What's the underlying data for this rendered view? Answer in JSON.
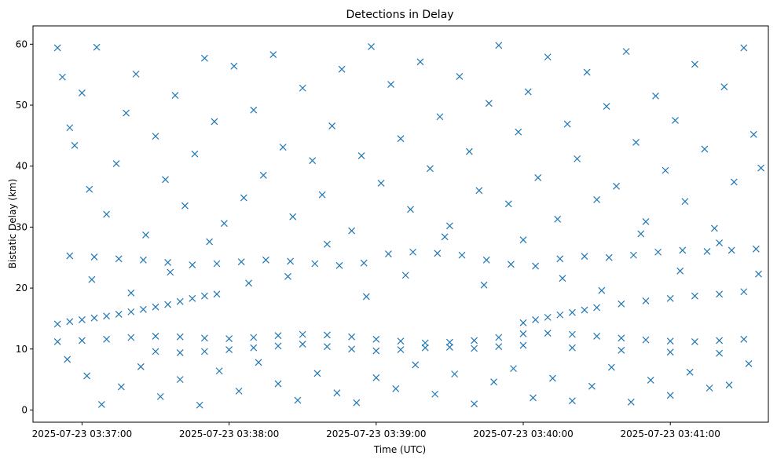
{
  "chart_data": {
    "type": "scatter",
    "title": "Detections in Delay",
    "xlabel": "Time (UTC)",
    "ylabel": "Bistatic Delay (km)",
    "x_axis_type": "time",
    "xlim": [
      "2025-07-23 03:36:40",
      "2025-07-23 03:41:40"
    ],
    "ylim": [
      -2,
      63
    ],
    "x_ticks": [
      "2025-07-23 03:37:00",
      "2025-07-23 03:38:00",
      "2025-07-23 03:39:00",
      "2025-07-23 03:40:00",
      "2025-07-23 03:41:00"
    ],
    "y_ticks": [
      0,
      10,
      20,
      30,
      40,
      50,
      60
    ],
    "grid": false,
    "marker": "x",
    "color": "#1f77b4",
    "series": [
      {
        "points": [
          [
            "2025-07-23 03:36:50",
            14.1
          ],
          [
            "2025-07-23 03:36:55",
            14.5
          ],
          [
            "2025-07-23 03:37:00",
            14.8
          ],
          [
            "2025-07-23 03:37:05",
            15.1
          ],
          [
            "2025-07-23 03:37:10",
            15.4
          ],
          [
            "2025-07-23 03:37:15",
            15.7
          ],
          [
            "2025-07-23 03:37:20",
            16.1
          ],
          [
            "2025-07-23 03:37:25",
            16.5
          ],
          [
            "2025-07-23 03:37:30",
            16.9
          ],
          [
            "2025-07-23 03:37:35",
            17.3
          ],
          [
            "2025-07-23 03:37:40",
            17.8
          ],
          [
            "2025-07-23 03:37:45",
            18.3
          ],
          [
            "2025-07-23 03:37:50",
            18.7
          ],
          [
            "2025-07-23 03:37:55",
            19.0
          ],
          [
            "2025-07-23 03:40:00",
            14.3
          ],
          [
            "2025-07-23 03:40:05",
            14.8
          ],
          [
            "2025-07-23 03:40:10",
            15.2
          ],
          [
            "2025-07-23 03:40:15",
            15.6
          ],
          [
            "2025-07-23 03:40:20",
            16.0
          ],
          [
            "2025-07-23 03:40:25",
            16.4
          ],
          [
            "2025-07-23 03:40:30",
            16.8
          ],
          [
            "2025-07-23 03:40:40",
            17.4
          ],
          [
            "2025-07-23 03:40:50",
            17.9
          ],
          [
            "2025-07-23 03:41:00",
            18.3
          ],
          [
            "2025-07-23 03:41:10",
            18.7
          ],
          [
            "2025-07-23 03:41:20",
            19.0
          ],
          [
            "2025-07-23 03:41:30",
            19.4
          ],
          [
            "2025-07-23 03:36:50",
            11.2
          ],
          [
            "2025-07-23 03:37:00",
            11.4
          ],
          [
            "2025-07-23 03:37:10",
            11.6
          ],
          [
            "2025-07-23 03:37:20",
            11.9
          ],
          [
            "2025-07-23 03:37:30",
            12.1
          ],
          [
            "2025-07-23 03:37:40",
            12.0
          ],
          [
            "2025-07-23 03:37:50",
            11.8
          ],
          [
            "2025-07-23 03:38:00",
            11.7
          ],
          [
            "2025-07-23 03:38:10",
            11.9
          ],
          [
            "2025-07-23 03:38:20",
            12.2
          ],
          [
            "2025-07-23 03:38:30",
            12.4
          ],
          [
            "2025-07-23 03:38:40",
            12.3
          ],
          [
            "2025-07-23 03:38:50",
            12.0
          ],
          [
            "2025-07-23 03:39:00",
            11.6
          ],
          [
            "2025-07-23 03:39:10",
            11.3
          ],
          [
            "2025-07-23 03:39:20",
            11.0
          ],
          [
            "2025-07-23 03:39:30",
            11.1
          ],
          [
            "2025-07-23 03:39:40",
            11.4
          ],
          [
            "2025-07-23 03:39:50",
            11.9
          ],
          [
            "2025-07-23 03:40:00",
            12.5
          ],
          [
            "2025-07-23 03:40:10",
            12.6
          ],
          [
            "2025-07-23 03:40:20",
            12.4
          ],
          [
            "2025-07-23 03:40:30",
            12.1
          ],
          [
            "2025-07-23 03:40:40",
            11.8
          ],
          [
            "2025-07-23 03:40:50",
            11.5
          ],
          [
            "2025-07-23 03:41:00",
            11.3
          ],
          [
            "2025-07-23 03:41:10",
            11.2
          ],
          [
            "2025-07-23 03:41:20",
            11.4
          ],
          [
            "2025-07-23 03:41:30",
            11.6
          ],
          [
            "2025-07-23 03:37:30",
            9.6
          ],
          [
            "2025-07-23 03:37:40",
            9.4
          ],
          [
            "2025-07-23 03:37:50",
            9.6
          ],
          [
            "2025-07-23 03:38:00",
            9.9
          ],
          [
            "2025-07-23 03:38:10",
            10.2
          ],
          [
            "2025-07-23 03:38:20",
            10.5
          ],
          [
            "2025-07-23 03:38:30",
            10.8
          ],
          [
            "2025-07-23 03:38:40",
            10.4
          ],
          [
            "2025-07-23 03:38:50",
            10.0
          ],
          [
            "2025-07-23 03:39:00",
            9.7
          ],
          [
            "2025-07-23 03:39:10",
            9.9
          ],
          [
            "2025-07-23 03:39:20",
            10.2
          ],
          [
            "2025-07-23 03:39:30",
            10.3
          ],
          [
            "2025-07-23 03:39:40",
            10.1
          ],
          [
            "2025-07-23 03:39:50",
            10.4
          ],
          [
            "2025-07-23 03:40:00",
            10.6
          ],
          [
            "2025-07-23 03:40:20",
            10.2
          ],
          [
            "2025-07-23 03:40:40",
            9.8
          ],
          [
            "2025-07-23 03:41:00",
            9.5
          ],
          [
            "2025-07-23 03:41:20",
            9.3
          ],
          [
            "2025-07-23 03:36:55",
            25.3
          ],
          [
            "2025-07-23 03:37:05",
            25.1
          ],
          [
            "2025-07-23 03:37:15",
            24.8
          ],
          [
            "2025-07-23 03:37:25",
            24.6
          ],
          [
            "2025-07-23 03:37:35",
            24.2
          ],
          [
            "2025-07-23 03:37:45",
            23.8
          ],
          [
            "2025-07-23 03:37:55",
            24.0
          ],
          [
            "2025-07-23 03:38:05",
            24.3
          ],
          [
            "2025-07-23 03:38:15",
            24.6
          ],
          [
            "2025-07-23 03:38:25",
            24.4
          ],
          [
            "2025-07-23 03:38:35",
            24.0
          ],
          [
            "2025-07-23 03:38:45",
            23.7
          ],
          [
            "2025-07-23 03:38:55",
            24.1
          ],
          [
            "2025-07-23 03:39:05",
            25.6
          ],
          [
            "2025-07-23 03:39:15",
            25.9
          ],
          [
            "2025-07-23 03:39:25",
            25.7
          ],
          [
            "2025-07-23 03:39:35",
            25.4
          ],
          [
            "2025-07-23 03:39:45",
            24.6
          ],
          [
            "2025-07-23 03:39:55",
            23.9
          ],
          [
            "2025-07-23 03:40:05",
            23.6
          ],
          [
            "2025-07-23 03:40:15",
            24.8
          ],
          [
            "2025-07-23 03:40:25",
            25.2
          ],
          [
            "2025-07-23 03:40:35",
            25.0
          ],
          [
            "2025-07-23 03:40:45",
            25.4
          ],
          [
            "2025-07-23 03:40:55",
            25.9
          ],
          [
            "2025-07-23 03:41:05",
            26.2
          ],
          [
            "2025-07-23 03:41:15",
            26.0
          ],
          [
            "2025-07-23 03:41:25",
            26.2
          ],
          [
            "2025-07-23 03:41:35",
            26.4
          ],
          [
            "2025-07-23 03:36:50",
            59.4
          ],
          [
            "2025-07-23 03:36:52",
            54.6
          ],
          [
            "2025-07-23 03:36:55",
            46.3
          ],
          [
            "2025-07-23 03:36:57",
            43.4
          ],
          [
            "2025-07-23 03:37:00",
            52.0
          ],
          [
            "2025-07-23 03:37:03",
            36.2
          ],
          [
            "2025-07-23 03:37:06",
            59.5
          ],
          [
            "2025-07-23 03:37:10",
            32.1
          ],
          [
            "2025-07-23 03:37:14",
            40.4
          ],
          [
            "2025-07-23 03:37:18",
            48.7
          ],
          [
            "2025-07-23 03:37:22",
            55.1
          ],
          [
            "2025-07-23 03:37:26",
            28.7
          ],
          [
            "2025-07-23 03:37:30",
            44.9
          ],
          [
            "2025-07-23 03:37:34",
            37.8
          ],
          [
            "2025-07-23 03:37:38",
            51.6
          ],
          [
            "2025-07-23 03:37:42",
            33.5
          ],
          [
            "2025-07-23 03:37:46",
            42.0
          ],
          [
            "2025-07-23 03:37:50",
            57.7
          ],
          [
            "2025-07-23 03:37:54",
            47.3
          ],
          [
            "2025-07-23 03:37:58",
            30.6
          ],
          [
            "2025-07-23 03:38:02",
            56.4
          ],
          [
            "2025-07-23 03:38:06",
            34.8
          ],
          [
            "2025-07-23 03:38:10",
            49.2
          ],
          [
            "2025-07-23 03:38:14",
            38.5
          ],
          [
            "2025-07-23 03:38:18",
            58.3
          ],
          [
            "2025-07-23 03:38:22",
            43.1
          ],
          [
            "2025-07-23 03:38:26",
            31.7
          ],
          [
            "2025-07-23 03:38:30",
            52.8
          ],
          [
            "2025-07-23 03:38:34",
            40.9
          ],
          [
            "2025-07-23 03:38:38",
            35.3
          ],
          [
            "2025-07-23 03:38:42",
            46.6
          ],
          [
            "2025-07-23 03:38:46",
            55.9
          ],
          [
            "2025-07-23 03:38:50",
            29.4
          ],
          [
            "2025-07-23 03:38:54",
            41.7
          ],
          [
            "2025-07-23 03:38:58",
            59.6
          ],
          [
            "2025-07-23 03:39:02",
            37.2
          ],
          [
            "2025-07-23 03:39:06",
            53.4
          ],
          [
            "2025-07-23 03:39:10",
            44.5
          ],
          [
            "2025-07-23 03:39:14",
            32.9
          ],
          [
            "2025-07-23 03:39:18",
            57.1
          ],
          [
            "2025-07-23 03:39:22",
            39.6
          ],
          [
            "2025-07-23 03:39:26",
            48.1
          ],
          [
            "2025-07-23 03:39:30",
            30.2
          ],
          [
            "2025-07-23 03:39:34",
            54.7
          ],
          [
            "2025-07-23 03:39:38",
            42.4
          ],
          [
            "2025-07-23 03:39:42",
            36.0
          ],
          [
            "2025-07-23 03:39:46",
            50.3
          ],
          [
            "2025-07-23 03:39:50",
            59.8
          ],
          [
            "2025-07-23 03:39:54",
            33.8
          ],
          [
            "2025-07-23 03:39:58",
            45.6
          ],
          [
            "2025-07-23 03:40:02",
            52.2
          ],
          [
            "2025-07-23 03:40:06",
            38.1
          ],
          [
            "2025-07-23 03:40:10",
            57.9
          ],
          [
            "2025-07-23 03:40:14",
            31.3
          ],
          [
            "2025-07-23 03:40:18",
            46.9
          ],
          [
            "2025-07-23 03:40:22",
            41.2
          ],
          [
            "2025-07-23 03:40:26",
            55.4
          ],
          [
            "2025-07-23 03:40:30",
            34.5
          ],
          [
            "2025-07-23 03:40:34",
            49.8
          ],
          [
            "2025-07-23 03:40:38",
            36.7
          ],
          [
            "2025-07-23 03:40:42",
            58.8
          ],
          [
            "2025-07-23 03:40:46",
            43.9
          ],
          [
            "2025-07-23 03:40:50",
            30.9
          ],
          [
            "2025-07-23 03:40:54",
            51.5
          ],
          [
            "2025-07-23 03:40:58",
            39.3
          ],
          [
            "2025-07-23 03:41:02",
            47.5
          ],
          [
            "2025-07-23 03:41:06",
            34.2
          ],
          [
            "2025-07-23 03:41:10",
            56.7
          ],
          [
            "2025-07-23 03:41:14",
            42.8
          ],
          [
            "2025-07-23 03:41:18",
            29.8
          ],
          [
            "2025-07-23 03:41:22",
            53.0
          ],
          [
            "2025-07-23 03:41:26",
            37.4
          ],
          [
            "2025-07-23 03:41:30",
            59.4
          ],
          [
            "2025-07-23 03:41:34",
            45.2
          ],
          [
            "2025-07-23 03:41:37",
            39.7
          ],
          [
            "2025-07-23 03:36:54",
            8.3
          ],
          [
            "2025-07-23 03:37:02",
            5.6
          ],
          [
            "2025-07-23 03:37:08",
            0.9
          ],
          [
            "2025-07-23 03:37:16",
            3.8
          ],
          [
            "2025-07-23 03:37:24",
            7.1
          ],
          [
            "2025-07-23 03:37:32",
            2.2
          ],
          [
            "2025-07-23 03:37:40",
            5.0
          ],
          [
            "2025-07-23 03:37:48",
            0.8
          ],
          [
            "2025-07-23 03:37:56",
            6.4
          ],
          [
            "2025-07-23 03:38:04",
            3.1
          ],
          [
            "2025-07-23 03:38:12",
            7.8
          ],
          [
            "2025-07-23 03:38:20",
            4.3
          ],
          [
            "2025-07-23 03:38:28",
            1.6
          ],
          [
            "2025-07-23 03:38:36",
            6.0
          ],
          [
            "2025-07-23 03:38:44",
            2.8
          ],
          [
            "2025-07-23 03:38:52",
            1.2
          ],
          [
            "2025-07-23 03:39:00",
            5.3
          ],
          [
            "2025-07-23 03:39:08",
            3.5
          ],
          [
            "2025-07-23 03:39:16",
            7.4
          ],
          [
            "2025-07-23 03:39:24",
            2.6
          ],
          [
            "2025-07-23 03:39:32",
            5.9
          ],
          [
            "2025-07-23 03:39:40",
            1.0
          ],
          [
            "2025-07-23 03:39:48",
            4.6
          ],
          [
            "2025-07-23 03:39:56",
            6.8
          ],
          [
            "2025-07-23 03:40:04",
            2.0
          ],
          [
            "2025-07-23 03:40:12",
            5.2
          ],
          [
            "2025-07-23 03:40:20",
            1.5
          ],
          [
            "2025-07-23 03:40:28",
            3.9
          ],
          [
            "2025-07-23 03:40:36",
            7.0
          ],
          [
            "2025-07-23 03:40:44",
            1.3
          ],
          [
            "2025-07-23 03:40:52",
            4.9
          ],
          [
            "2025-07-23 03:41:00",
            2.4
          ],
          [
            "2025-07-23 03:41:08",
            6.2
          ],
          [
            "2025-07-23 03:41:16",
            3.6
          ],
          [
            "2025-07-23 03:41:24",
            4.1
          ],
          [
            "2025-07-23 03:41:32",
            7.6
          ],
          [
            "2025-07-23 03:37:04",
            21.4
          ],
          [
            "2025-07-23 03:37:20",
            19.2
          ],
          [
            "2025-07-23 03:37:36",
            22.6
          ],
          [
            "2025-07-23 03:37:52",
            27.6
          ],
          [
            "2025-07-23 03:38:08",
            20.8
          ],
          [
            "2025-07-23 03:38:24",
            21.9
          ],
          [
            "2025-07-23 03:38:40",
            27.2
          ],
          [
            "2025-07-23 03:38:56",
            18.6
          ],
          [
            "2025-07-23 03:39:12",
            22.1
          ],
          [
            "2025-07-23 03:39:28",
            28.4
          ],
          [
            "2025-07-23 03:39:44",
            20.5
          ],
          [
            "2025-07-23 03:40:00",
            27.9
          ],
          [
            "2025-07-23 03:40:16",
            21.6
          ],
          [
            "2025-07-23 03:40:32",
            19.6
          ],
          [
            "2025-07-23 03:40:48",
            28.9
          ],
          [
            "2025-07-23 03:41:04",
            22.8
          ],
          [
            "2025-07-23 03:41:20",
            27.4
          ],
          [
            "2025-07-23 03:41:36",
            22.3
          ]
        ]
      }
    ]
  }
}
